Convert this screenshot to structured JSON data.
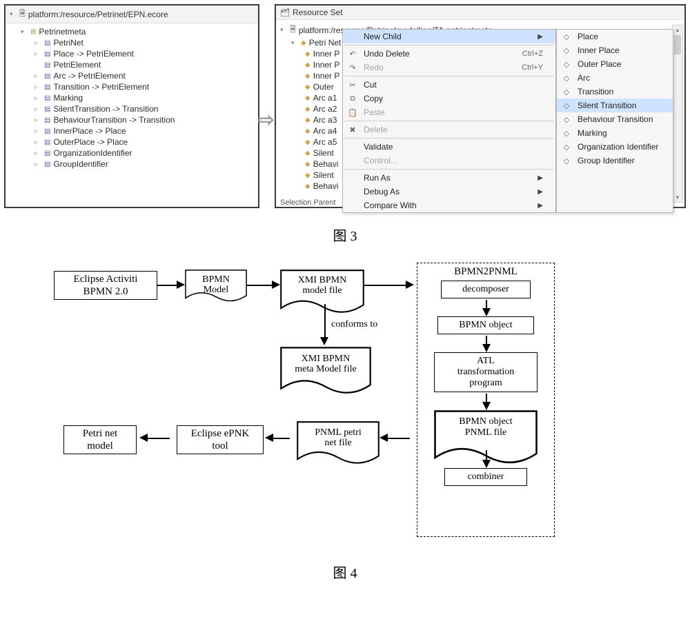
{
  "leftPanel": {
    "path": "platform:/resource/Petrinet/EPN.ecore",
    "root": "Petrinetmeta",
    "items": [
      "PetriNet",
      "Place -> PetriElement",
      "PetriElement",
      "Arc -> PetriElement",
      "Transition -> PetriElement",
      "Marking",
      "SilentTransition -> Transition",
      "BehaviourTransition -> Transition",
      "InnerPlace -> Place",
      "OuterPlace -> Place",
      "OrganizationIdentifier",
      "GroupIdentifier"
    ]
  },
  "rightPanel": {
    "header": "Resource Set",
    "path": "platform:/resource/Petrinetmodelling/TA.petrinetmeta",
    "root": "Petri Net",
    "items": [
      "Inner P",
      "Inner P",
      "Inner P",
      "Outer ",
      "Arc a1",
      "Arc a2",
      "Arc a3",
      "Arc a4",
      "Arc a5",
      "Silent ",
      "Behavi",
      "Silent ",
      "Behavi"
    ],
    "truncFooter": "Selection  Parent"
  },
  "ctxMenu": {
    "items": [
      {
        "label": "New Child",
        "icon": "",
        "sub": true,
        "hover": true
      },
      {
        "sep": true
      },
      {
        "label": "Undo Delete",
        "icon": "↶",
        "accel": "Ctrl+Z"
      },
      {
        "label": "Redo",
        "icon": "↷",
        "accel": "Ctrl+Y",
        "disabled": true
      },
      {
        "sep": true
      },
      {
        "label": "Cut",
        "icon": "✂"
      },
      {
        "label": "Copy",
        "icon": "⧉"
      },
      {
        "label": "Paste",
        "icon": "📋",
        "disabled": true
      },
      {
        "sep": true
      },
      {
        "label": "Delete",
        "icon": "✖",
        "disabled": true
      },
      {
        "sep": true
      },
      {
        "label": "Validate"
      },
      {
        "label": "Control...",
        "disabled": true
      },
      {
        "sep": true
      },
      {
        "label": "Run As",
        "sub": true
      },
      {
        "label": "Debug As",
        "sub": true
      },
      {
        "label": "Compare With",
        "sub": true
      }
    ],
    "submenu": [
      "Place",
      "Inner Place",
      "Outer Place",
      "Arc",
      "Transition",
      "Silent Transition",
      "Behaviour Transition",
      "Marking",
      "Organization Identifier",
      "Group Identifier"
    ],
    "submenuHoverIndex": 5
  },
  "captions": {
    "fig3": "图 3",
    "fig4": "图 4"
  },
  "flow": {
    "nodes": {
      "eclipse": "Eclipse Activiti\nBPMN 2.0",
      "bpmnModel": "BPMN\nModel",
      "xmiModel": "XMI  BPMN\nmodel file",
      "xmiMeta": "XMI  BPMN\nmeta Model file",
      "conforms": "conforms to",
      "dashTitle": "BPMN2PNML",
      "decomposer": "decomposer",
      "bpmnObj": "BPMN object",
      "atl": "ATL\ntransformation\nprogram",
      "bpmnPnml": "BPMN object\nPNML file",
      "combiner": "combiner",
      "pnmlFile": "PNML petri\nnet file",
      "epnk": "Eclipse ePNK\ntool",
      "petriModel": "Petri net\nmodel"
    }
  }
}
